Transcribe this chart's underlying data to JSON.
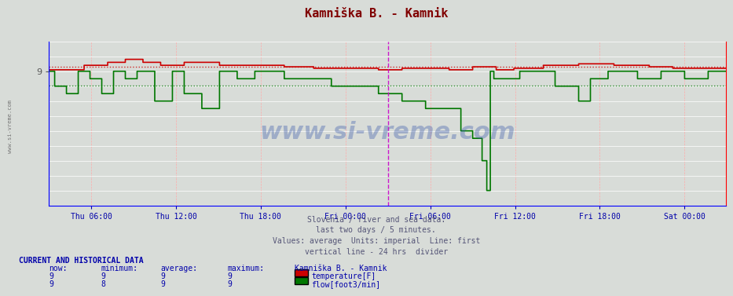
{
  "title": "Kamniška B. - Kamnik",
  "title_color": "#800000",
  "bg_color": "#d8dcd8",
  "plot_bg_color": "#d8dcd8",
  "temp_color": "#cc0000",
  "flow_color": "#007700",
  "x_label_color": "#0000aa",
  "x_tick_labels": [
    "Thu 06:00",
    "Thu 12:00",
    "Thu 18:00",
    "Fri 00:00",
    "Fri 06:00",
    "Fri 12:00",
    "Fri 18:00",
    "Sat 00:00"
  ],
  "subtitle_lines": [
    "Slovenia / river and sea data.",
    "last two days / 5 minutes.",
    "Values: average  Units: imperial  Line: first",
    "vertical line - 24 hrs  divider"
  ],
  "subtitle_color": "#555577",
  "table_header_color": "#0000aa",
  "table_data_color": "#0000aa",
  "watermark_text": "www.si-vreme.com",
  "total_minutes": 2880,
  "interval_minutes": 5,
  "now_temp": 9,
  "min_temp": 9,
  "avg_temp_val": 9,
  "max_temp": 9,
  "now_flow": 9,
  "min_flow": 8,
  "avg_flow_val": 9,
  "max_flow": 9
}
